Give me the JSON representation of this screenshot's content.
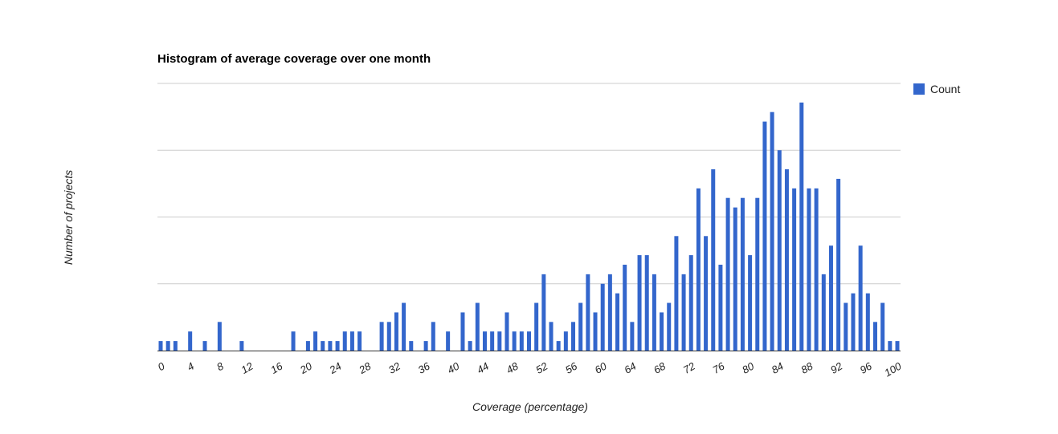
{
  "chart_data": {
    "type": "bar",
    "title": "Histogram of average coverage over one month",
    "xlabel": "Coverage (percentage)",
    "ylabel": "Number of projects",
    "legend": {
      "position": "right",
      "entries": [
        "Count"
      ]
    },
    "grid": true,
    "ylim": [
      0,
      28
    ],
    "xlim": [
      0,
      100
    ],
    "x_ticks": [
      "0",
      "4",
      "8",
      "12",
      "16",
      "20",
      "24",
      "28",
      "32",
      "36",
      "40",
      "44",
      "48",
      "52",
      "56",
      "60",
      "64",
      "68",
      "72",
      "76",
      "80",
      "84",
      "88",
      "92",
      "96",
      "100"
    ],
    "series": [
      {
        "name": "Count",
        "color": "#3366cc",
        "x": [
          0,
          1,
          2,
          3,
          4,
          5,
          6,
          7,
          8,
          9,
          10,
          11,
          12,
          13,
          14,
          15,
          16,
          17,
          18,
          19,
          20,
          21,
          22,
          23,
          24,
          25,
          26,
          27,
          28,
          29,
          30,
          31,
          32,
          33,
          34,
          35,
          36,
          37,
          38,
          39,
          40,
          41,
          42,
          43,
          44,
          45,
          46,
          47,
          48,
          49,
          50,
          51,
          52,
          53,
          54,
          55,
          56,
          57,
          58,
          59,
          60,
          61,
          62,
          63,
          64,
          65,
          66,
          67,
          68,
          69,
          70,
          71,
          72,
          73,
          74,
          75,
          76,
          77,
          78,
          79,
          80,
          81,
          82,
          83,
          84,
          85,
          86,
          87,
          88,
          89,
          90,
          91,
          92,
          93,
          94,
          95,
          96,
          97,
          98,
          99,
          100
        ],
        "values": [
          1,
          1,
          1,
          0,
          2,
          0,
          1,
          0,
          3,
          0,
          0,
          1,
          0,
          0,
          0,
          0,
          0,
          0,
          2,
          0,
          1,
          2,
          1,
          1,
          1,
          2,
          2,
          2,
          0,
          0,
          3,
          3,
          4,
          5,
          1,
          0,
          1,
          3,
          0,
          2,
          0,
          4,
          1,
          5,
          2,
          2,
          2,
          4,
          2,
          2,
          2,
          5,
          8,
          3,
          1,
          2,
          3,
          5,
          8,
          4,
          7,
          8,
          6,
          9,
          3,
          10,
          10,
          8,
          4,
          5,
          12,
          8,
          10,
          17,
          12,
          19,
          9,
          16,
          15,
          16,
          10,
          16,
          24,
          25,
          21,
          19,
          17,
          26,
          17,
          17,
          8,
          11,
          18,
          5,
          6,
          11,
          6,
          3,
          5,
          1,
          1
        ]
      }
    ]
  }
}
